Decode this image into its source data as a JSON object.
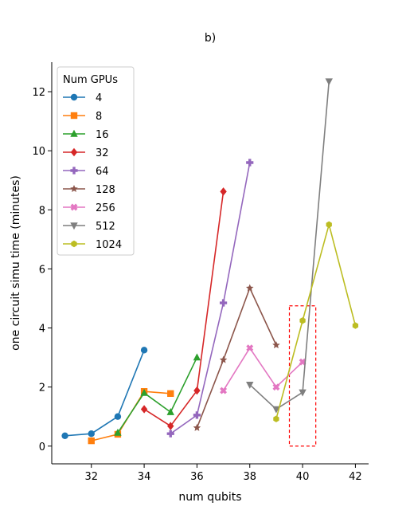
{
  "chart_data": {
    "type": "line",
    "title": "b)",
    "xlabel": "num qubits",
    "ylabel": "one circuit simu time (minutes)",
    "xlim": [
      30.5,
      42.5
    ],
    "ylim": [
      -0.6,
      13.0
    ],
    "x_ticks": [
      32,
      34,
      36,
      38,
      40,
      42
    ],
    "y_ticks": [
      0,
      2,
      4,
      6,
      8,
      10,
      12
    ],
    "grid": false,
    "legend": {
      "title": "Num GPUs",
      "placement": "top-left"
    },
    "series": [
      {
        "name": "4",
        "color": "#1f77b4",
        "marker": "circle",
        "x": [
          31,
          32,
          33,
          34
        ],
        "y": [
          0.35,
          0.42,
          1.0,
          3.25
        ]
      },
      {
        "name": "8",
        "color": "#ff7f0e",
        "marker": "square",
        "x": [
          32,
          33,
          34,
          35
        ],
        "y": [
          0.18,
          0.4,
          1.85,
          1.78
        ]
      },
      {
        "name": "16",
        "color": "#2ca02c",
        "marker": "triangle-up",
        "x": [
          33,
          34,
          35,
          36
        ],
        "y": [
          0.45,
          1.8,
          1.15,
          3.0
        ]
      },
      {
        "name": "32",
        "color": "#d62728",
        "marker": "diamond",
        "x": [
          34,
          35,
          36,
          37
        ],
        "y": [
          1.25,
          0.68,
          1.88,
          8.62
        ]
      },
      {
        "name": "64",
        "color": "#9467bd",
        "marker": "plus",
        "x": [
          35,
          36,
          37,
          38
        ],
        "y": [
          0.42,
          1.05,
          4.85,
          9.6
        ]
      },
      {
        "name": "128",
        "color": "#8c564b",
        "marker": "star",
        "x": [
          36,
          37,
          38,
          39
        ],
        "y": [
          0.62,
          2.92,
          5.35,
          3.42
        ]
      },
      {
        "name": "256",
        "color": "#e377c2",
        "marker": "x",
        "x": [
          37,
          38,
          39,
          40
        ],
        "y": [
          1.88,
          3.32,
          2.0,
          2.85
        ]
      },
      {
        "name": "512",
        "color": "#7f7f7f",
        "marker": "triangle-down",
        "x": [
          38,
          39,
          40,
          41
        ],
        "y": [
          2.08,
          1.25,
          1.82,
          12.35
        ]
      },
      {
        "name": "1024",
        "color": "#bcbd22",
        "marker": "hexagon",
        "x": [
          39,
          40,
          41,
          42
        ],
        "y": [
          0.92,
          4.25,
          7.5,
          4.08
        ]
      }
    ],
    "annotation_box": {
      "x": [
        39.5,
        40.5
      ],
      "y": [
        0.0,
        4.75
      ],
      "color": "#ff0000",
      "style": "dashed"
    }
  }
}
